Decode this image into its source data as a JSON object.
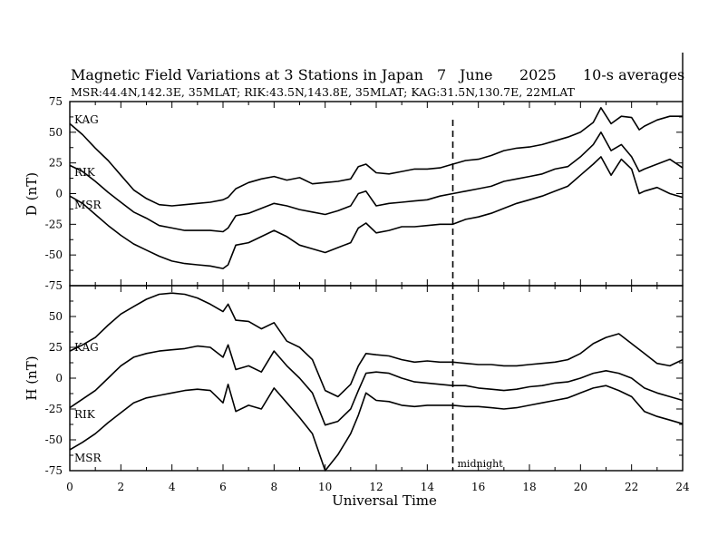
{
  "chart_data": {
    "type": "line",
    "title": {
      "main": "Magnetic Field Variations at 3 Stations in Japan",
      "day": "7",
      "month": "June",
      "year": "2025",
      "note": "10-s averages"
    },
    "subtitle": "MSR:44.4N,142.3E, 35MLAT;  RIK:43.5N,143.8E, 35MLAT;  KAG:31.5N,130.7E, 22MLAT",
    "xlabel": "Universal Time",
    "xlim": [
      0,
      24
    ],
    "xticks": [
      "0",
      "2",
      "4",
      "6",
      "8",
      "10",
      "12",
      "14",
      "16",
      "18",
      "20",
      "22",
      "24"
    ],
    "midnight": {
      "x": 15,
      "label": "midnight"
    },
    "panels": [
      {
        "ylabel": "D (nT)",
        "ylim": [
          -75,
          75
        ],
        "yticks": [
          "75",
          "50",
          "25",
          "0",
          "-25",
          "-50",
          "-75"
        ],
        "series": [
          {
            "name": "KAG",
            "x": [
              0,
              0.5,
              1,
              1.5,
              2,
              2.5,
              3,
              3.5,
              4,
              4.5,
              5,
              5.5,
              6,
              6.2,
              6.5,
              7,
              7.5,
              8,
              8.5,
              9,
              9.5,
              10,
              10.5,
              11,
              11.3,
              11.6,
              12,
              12.5,
              13,
              13.5,
              14,
              14.5,
              15,
              15.5,
              16,
              16.5,
              17,
              17.5,
              18,
              18.5,
              19,
              19.5,
              20,
              20.5,
              20.8,
              21.2,
              21.6,
              22,
              22.3,
              22.5,
              23,
              23.5,
              24
            ],
            "values": [
              57,
              48,
              37,
              27,
              15,
              3,
              -4,
              -9,
              -10,
              -9,
              -8,
              -7,
              -5,
              -3,
              4,
              9,
              12,
              14,
              11,
              13,
              8,
              9,
              10,
              12,
              22,
              24,
              17,
              16,
              18,
              20,
              20,
              21,
              24,
              27,
              28,
              31,
              35,
              37,
              38,
              40,
              43,
              46,
              50,
              58,
              70,
              57,
              63,
              62,
              52,
              55,
              60,
              63,
              63
            ]
          },
          {
            "name": "RIK",
            "x": [
              0,
              0.5,
              1,
              1.5,
              2,
              2.5,
              3,
              3.5,
              4,
              4.5,
              5,
              5.5,
              6,
              6.2,
              6.5,
              7,
              7.5,
              8,
              8.5,
              9,
              9.5,
              10,
              10.5,
              11,
              11.3,
              11.6,
              12,
              12.5,
              13,
              13.5,
              14,
              14.5,
              15,
              15.5,
              16,
              16.5,
              17,
              17.5,
              18,
              18.5,
              19,
              19.5,
              20,
              20.5,
              20.8,
              21.2,
              21.6,
              22,
              22.3,
              22.5,
              23,
              23.5,
              24
            ],
            "values": [
              23,
              18,
              10,
              1,
              -7,
              -15,
              -20,
              -26,
              -28,
              -30,
              -30,
              -30,
              -31,
              -28,
              -18,
              -16,
              -12,
              -8,
              -10,
              -13,
              -15,
              -17,
              -14,
              -10,
              0,
              2,
              -10,
              -8,
              -7,
              -6,
              -5,
              -2,
              0,
              2,
              4,
              6,
              10,
              12,
              14,
              16,
              20,
              22,
              30,
              40,
              50,
              35,
              40,
              30,
              18,
              20,
              24,
              28,
              21
            ]
          },
          {
            "name": "MSR",
            "x": [
              0,
              0.5,
              1,
              1.5,
              2,
              2.5,
              3,
              3.5,
              4,
              4.5,
              5,
              5.5,
              6,
              6.2,
              6.5,
              7,
              7.5,
              8,
              8.5,
              9,
              9.5,
              10,
              10.5,
              11,
              11.3,
              11.6,
              12,
              12.5,
              13,
              13.5,
              14,
              14.5,
              15,
              15.5,
              16,
              16.5,
              17,
              17.5,
              18,
              18.5,
              19,
              19.5,
              20,
              20.5,
              20.8,
              21.2,
              21.6,
              22,
              22.3,
              22.5,
              23,
              23.5,
              24
            ],
            "values": [
              -2,
              -8,
              -17,
              -26,
              -34,
              -41,
              -46,
              -51,
              -55,
              -57,
              -58,
              -59,
              -61,
              -58,
              -42,
              -40,
              -35,
              -30,
              -35,
              -42,
              -45,
              -48,
              -44,
              -40,
              -28,
              -24,
              -32,
              -30,
              -27,
              -27,
              -26,
              -25,
              -25,
              -21,
              -19,
              -16,
              -12,
              -8,
              -5,
              -2,
              2,
              6,
              15,
              24,
              30,
              15,
              28,
              20,
              0,
              2,
              5,
              0,
              -3
            ]
          }
        ]
      },
      {
        "ylabel": "H (nT)",
        "ylim": [
          -75,
          75
        ],
        "yticks": [
          "75",
          "50",
          "25",
          "0",
          "-25",
          "-50",
          "-75"
        ],
        "series": [
          {
            "name": "KAG",
            "x": [
              0,
              0.5,
              1,
              1.5,
              2,
              2.5,
              3,
              3.5,
              4,
              4.5,
              5,
              5.5,
              6,
              6.2,
              6.5,
              7,
              7.5,
              8,
              8.5,
              9,
              9.5,
              10,
              10.5,
              11,
              11.3,
              11.6,
              12,
              12.5,
              13,
              13.5,
              14,
              14.5,
              15,
              15.5,
              16,
              16.5,
              17,
              17.5,
              18,
              18.5,
              19,
              19.5,
              20,
              20.5,
              21,
              21.5,
              22,
              22.5,
              23,
              23.5,
              24
            ],
            "values": [
              22,
              27,
              33,
              43,
              52,
              58,
              64,
              68,
              69,
              68,
              65,
              60,
              54,
              60,
              47,
              46,
              40,
              45,
              30,
              25,
              15,
              -10,
              -15,
              -5,
              10,
              20,
              19,
              18,
              15,
              13,
              14,
              13,
              13,
              12,
              11,
              11,
              10,
              10,
              11,
              12,
              13,
              15,
              20,
              28,
              33,
              36,
              28,
              20,
              12,
              10,
              15
            ]
          },
          {
            "name": "RIK",
            "x": [
              0,
              0.5,
              1,
              1.5,
              2,
              2.5,
              3,
              3.5,
              4,
              4.5,
              5,
              5.5,
              6,
              6.2,
              6.5,
              7,
              7.5,
              8,
              8.5,
              9,
              9.5,
              10,
              10.5,
              11,
              11.3,
              11.6,
              12,
              12.5,
              13,
              13.5,
              14,
              14.5,
              15,
              15.5,
              16,
              16.5,
              17,
              17.5,
              18,
              18.5,
              19,
              19.5,
              20,
              20.5,
              21,
              21.5,
              22,
              22.5,
              23,
              23.5,
              24
            ],
            "values": [
              -24,
              -17,
              -10,
              0,
              10,
              17,
              20,
              22,
              23,
              24,
              26,
              25,
              17,
              27,
              7,
              10,
              5,
              22,
              10,
              0,
              -12,
              -38,
              -35,
              -25,
              -10,
              4,
              5,
              4,
              0,
              -3,
              -4,
              -5,
              -6,
              -6,
              -8,
              -9,
              -10,
              -9,
              -7,
              -6,
              -4,
              -3,
              0,
              4,
              6,
              4,
              0,
              -8,
              -12,
              -15,
              -18
            ]
          },
          {
            "name": "MSR",
            "x": [
              0,
              0.5,
              1,
              1.5,
              2,
              2.5,
              3,
              3.5,
              4,
              4.5,
              5,
              5.5,
              6,
              6.2,
              6.5,
              7,
              7.5,
              8,
              8.5,
              9,
              9.5,
              10,
              10.5,
              11,
              11.3,
              11.6,
              12,
              12.5,
              13,
              13.5,
              14,
              14.5,
              15,
              15.5,
              16,
              16.5,
              17,
              17.5,
              18,
              18.5,
              19,
              19.5,
              20,
              20.5,
              21,
              21.5,
              22,
              22.5,
              23,
              23.5,
              24
            ],
            "values": [
              -58,
              -52,
              -45,
              -36,
              -28,
              -20,
              -16,
              -14,
              -12,
              -10,
              -9,
              -10,
              -20,
              -5,
              -27,
              -22,
              -25,
              -8,
              -20,
              -32,
              -45,
              -75,
              -62,
              -45,
              -30,
              -12,
              -18,
              -19,
              -22,
              -23,
              -22,
              -22,
              -22,
              -23,
              -23,
              -24,
              -25,
              -24,
              -22,
              -20,
              -18,
              -16,
              -12,
              -8,
              -6,
              -10,
              -15,
              -27,
              -31,
              -34,
              -37
            ]
          }
        ]
      }
    ]
  }
}
